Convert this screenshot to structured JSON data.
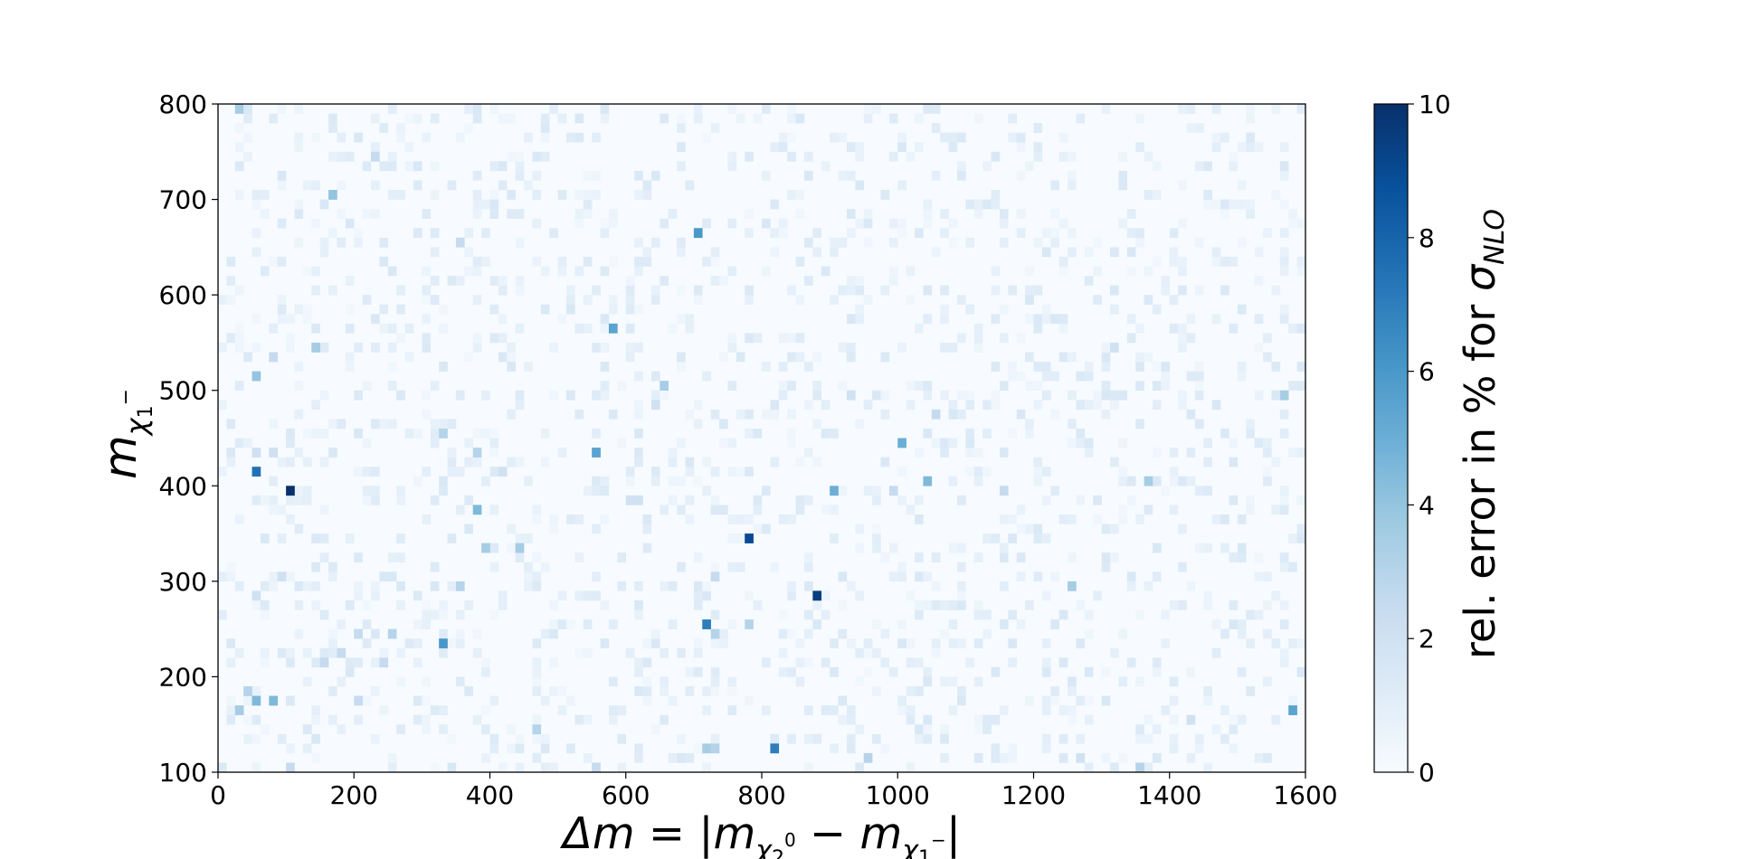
{
  "chart_data": {
    "type": "heatmap",
    "colormap": "Blues",
    "xlabel": "Δm = |m_χ2^0 − m_χ1^−|",
    "ylabel": "m_χ1^−",
    "colorbar_label": "rel. error in % for σ_NLO",
    "xlim": [
      0,
      1600
    ],
    "ylim": [
      100,
      800
    ],
    "color_range": [
      0,
      10
    ],
    "x_ticks": [
      "0",
      "200",
      "400",
      "600",
      "800",
      "1000",
      "1200",
      "1400",
      "1600"
    ],
    "y_ticks": [
      "100",
      "200",
      "300",
      "400",
      "500",
      "600",
      "700",
      "800"
    ],
    "colorbar_ticks": [
      "0",
      "2",
      "4",
      "6",
      "8",
      "10"
    ],
    "bin_width": [
      12.5,
      10
    ],
    "baseline_value": 0.2,
    "points": [
      [
        25,
        795,
        3.5
      ],
      [
        110,
        390,
        10
      ],
      [
        60,
        410,
        7.5
      ],
      [
        785,
        345,
        9.0
      ],
      [
        885,
        285,
        9.5
      ],
      [
        700,
        665,
        6.0
      ],
      [
        575,
        560,
        5.5
      ],
      [
        715,
        255,
        7.0
      ],
      [
        820,
        125,
        7.0
      ],
      [
        335,
        235,
        6.0
      ],
      [
        560,
        435,
        5.5
      ],
      [
        1005,
        445,
        5.0
      ],
      [
        900,
        398,
        5.0
      ],
      [
        1040,
        408,
        4.5
      ],
      [
        1575,
        162,
        5.5
      ],
      [
        60,
        515,
        4.0
      ],
      [
        170,
        700,
        4.0
      ],
      [
        145,
        540,
        3.5
      ],
      [
        385,
        370,
        4.5
      ],
      [
        395,
        332,
        3.5
      ],
      [
        440,
        332,
        3.5
      ],
      [
        60,
        172,
        4.5
      ],
      [
        75,
        172,
        4.5
      ],
      [
        30,
        162,
        3.5
      ],
      [
        45,
        182,
        3.0
      ],
      [
        650,
        505,
        3.5
      ],
      [
        1365,
        408,
        3.5
      ],
      [
        1250,
        295,
        3.5
      ],
      [
        1570,
        495,
        3.5
      ],
      [
        950,
        110,
        3.0
      ],
      [
        1350,
        108,
        3.0
      ],
      [
        720,
        125,
        3.5
      ],
      [
        735,
        125,
        3.0
      ],
      [
        780,
        255,
        3.0
      ],
      [
        735,
        240,
        3.0
      ],
      [
        470,
        148,
        3.0
      ],
      [
        380,
        438,
        3.0
      ],
      [
        330,
        455,
        3.0
      ],
      [
        350,
        295,
        3.0
      ],
      [
        255,
        248,
        3.0
      ],
      [
        200,
        245,
        2.5
      ],
      [
        180,
        220,
        2.5
      ],
      [
        200,
        172,
        2.5
      ],
      [
        240,
        210,
        2.5
      ],
      [
        150,
        210,
        2.5
      ],
      [
        110,
        108,
        2.5
      ],
      [
        555,
        108,
        2.5
      ],
      [
        990,
        390,
        2.5
      ],
      [
        1160,
        390,
        2.5
      ],
      [
        1060,
        475,
        2.5
      ],
      [
        80,
        535,
        2.5
      ],
      [
        350,
        655,
        2.5
      ],
      [
        235,
        740,
        2.5
      ],
      [
        730,
        305,
        2.5
      ],
      [
        615,
        380,
        2.0
      ],
      [
        930,
        495,
        2.0
      ],
      [
        1265,
        118,
        2.0
      ],
      [
        1315,
        540,
        2.0
      ],
      [
        1435,
        152,
        2.0
      ],
      [
        935,
        685,
        1.5
      ],
      [
        615,
        450,
        1.5
      ],
      [
        260,
        305,
        1.5
      ],
      [
        245,
        305,
        1.5
      ],
      [
        315,
        295,
        1.5
      ],
      [
        210,
        455,
        1.5
      ],
      [
        60,
        435,
        2.0
      ],
      [
        75,
        435,
        2.0
      ],
      [
        95,
        305,
        2.0
      ],
      [
        60,
        285,
        2.0
      ],
      [
        420,
        418,
        2.0
      ],
      [
        600,
        385,
        2.0
      ],
      [
        645,
        485,
        2.0
      ],
      [
        1345,
        305,
        1.5
      ],
      [
        1380,
        330,
        1.5
      ],
      [
        1160,
        258,
        1.5
      ],
      [
        1230,
        258,
        1.5
      ],
      [
        1320,
        608,
        1.5
      ],
      [
        1510,
        332,
        1.5
      ],
      [
        1490,
        258,
        1.5
      ],
      [
        240,
        635,
        1.5
      ],
      [
        290,
        730,
        1.5
      ],
      [
        330,
        405,
        1.5
      ],
      [
        430,
        520,
        1.5
      ],
      [
        570,
        520,
        1.5
      ],
      [
        690,
        420,
        1.5
      ],
      [
        865,
        720,
        1.5
      ],
      [
        1000,
        235,
        1.5
      ],
      [
        1085,
        475,
        1.5
      ],
      [
        1390,
        520,
        1.5
      ],
      [
        1550,
        495,
        1.5
      ],
      [
        145,
        130,
        1.5
      ],
      [
        1140,
        200,
        1.5
      ],
      [
        1040,
        190,
        1.5
      ],
      [
        1280,
        200,
        1.5
      ],
      [
        1310,
        175,
        1.5
      ],
      [
        375,
        790,
        1.5
      ],
      [
        40,
        790,
        1.5
      ],
      [
        400,
        690,
        1.5
      ],
      [
        520,
        580,
        1.5
      ],
      [
        1190,
        598,
        1.5
      ]
    ],
    "grid": false,
    "legend": "colorbar-right"
  }
}
